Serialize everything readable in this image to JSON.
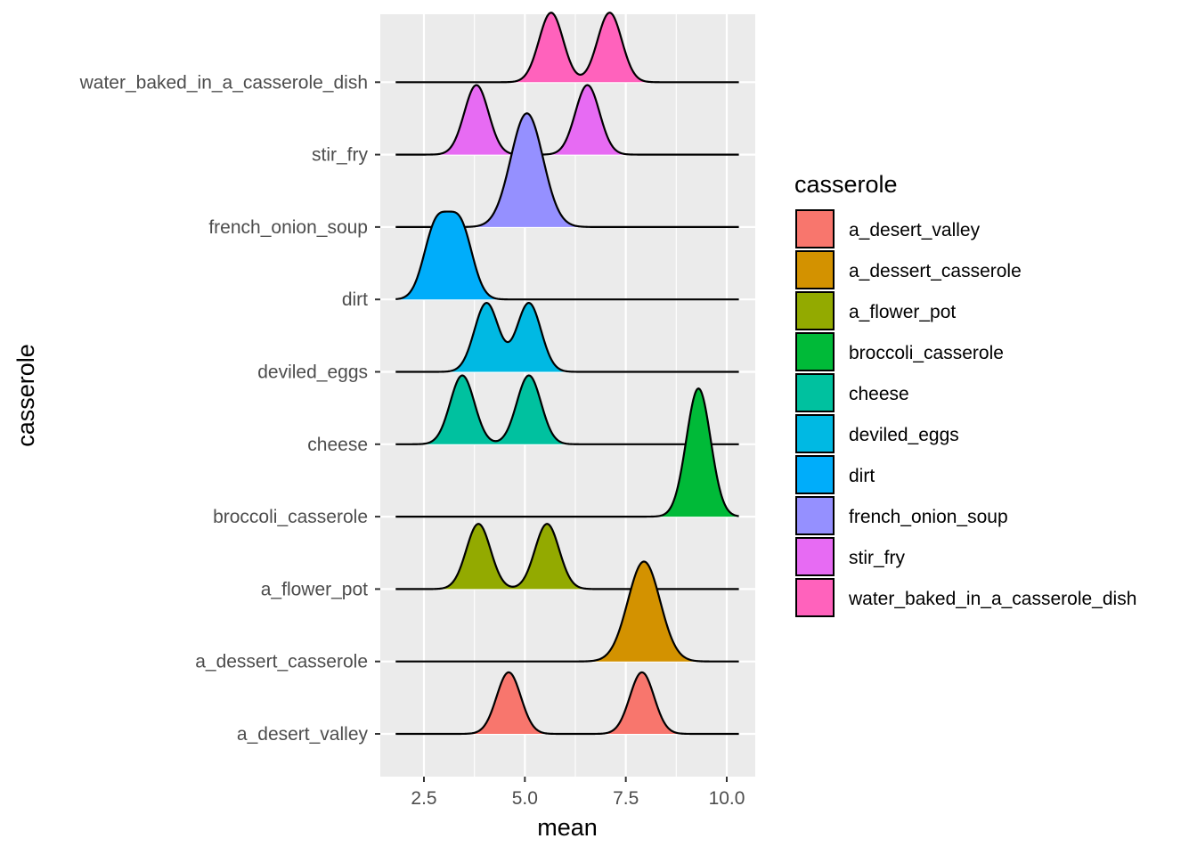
{
  "chart_data": {
    "type": "ridgeline",
    "xlabel": "mean",
    "ylabel": "casserole",
    "xlim": [
      1.8,
      10.3
    ],
    "x_ticks": [
      "2.5",
      "5.0",
      "7.5",
      "10.0"
    ],
    "x_tick_values": [
      2.5,
      5.0,
      7.5,
      10.0
    ],
    "legend": {
      "title": "casserole",
      "placement": "right"
    },
    "series": [
      {
        "name": "a_desert_valley",
        "color": "#F8766D",
        "peaks": [
          {
            "x": 4.6,
            "sd": 0.3,
            "h": 0.85
          },
          {
            "x": 7.9,
            "sd": 0.3,
            "h": 0.85
          }
        ]
      },
      {
        "name": "a_dessert_casserole",
        "color": "#D39200",
        "peaks": [
          {
            "x": 7.95,
            "sd": 0.4,
            "h": 1.38
          }
        ]
      },
      {
        "name": "a_flower_pot",
        "color": "#93AA00",
        "peaks": [
          {
            "x": 3.85,
            "sd": 0.3,
            "h": 0.9
          },
          {
            "x": 5.55,
            "sd": 0.3,
            "h": 0.9
          }
        ]
      },
      {
        "name": "broccoli_casserole",
        "color": "#00BA38",
        "peaks": [
          {
            "x": 9.3,
            "sd": 0.3,
            "h": 1.77
          }
        ]
      },
      {
        "name": "cheese",
        "color": "#00C19F",
        "peaks": [
          {
            "x": 3.45,
            "sd": 0.3,
            "h": 0.95
          },
          {
            "x": 5.1,
            "sd": 0.3,
            "h": 0.95
          }
        ]
      },
      {
        "name": "deviled_eggs",
        "color": "#00B9E3",
        "peaks": [
          {
            "x": 4.05,
            "sd": 0.3,
            "h": 0.95
          },
          {
            "x": 5.1,
            "sd": 0.3,
            "h": 0.95
          }
        ]
      },
      {
        "name": "dirt",
        "color": "#00ADFA",
        "peaks": [
          {
            "x": 2.8,
            "sd": 0.3,
            "h": 1.0
          },
          {
            "x": 3.4,
            "sd": 0.3,
            "h": 1.0
          }
        ]
      },
      {
        "name": "french_onion_soup",
        "color": "#9590FF",
        "peaks": [
          {
            "x": 5.05,
            "sd": 0.4,
            "h": 1.57
          }
        ]
      },
      {
        "name": "stir_fry",
        "color": "#E76BF3",
        "peaks": [
          {
            "x": 3.8,
            "sd": 0.3,
            "h": 0.96
          },
          {
            "x": 6.55,
            "sd": 0.3,
            "h": 0.96
          }
        ]
      },
      {
        "name": "water_baked_in_a_casserole_dish",
        "color": "#FF62BC",
        "peaks": [
          {
            "x": 5.65,
            "sd": 0.3,
            "h": 0.96
          },
          {
            "x": 7.1,
            "sd": 0.3,
            "h": 0.96
          }
        ]
      }
    ]
  }
}
